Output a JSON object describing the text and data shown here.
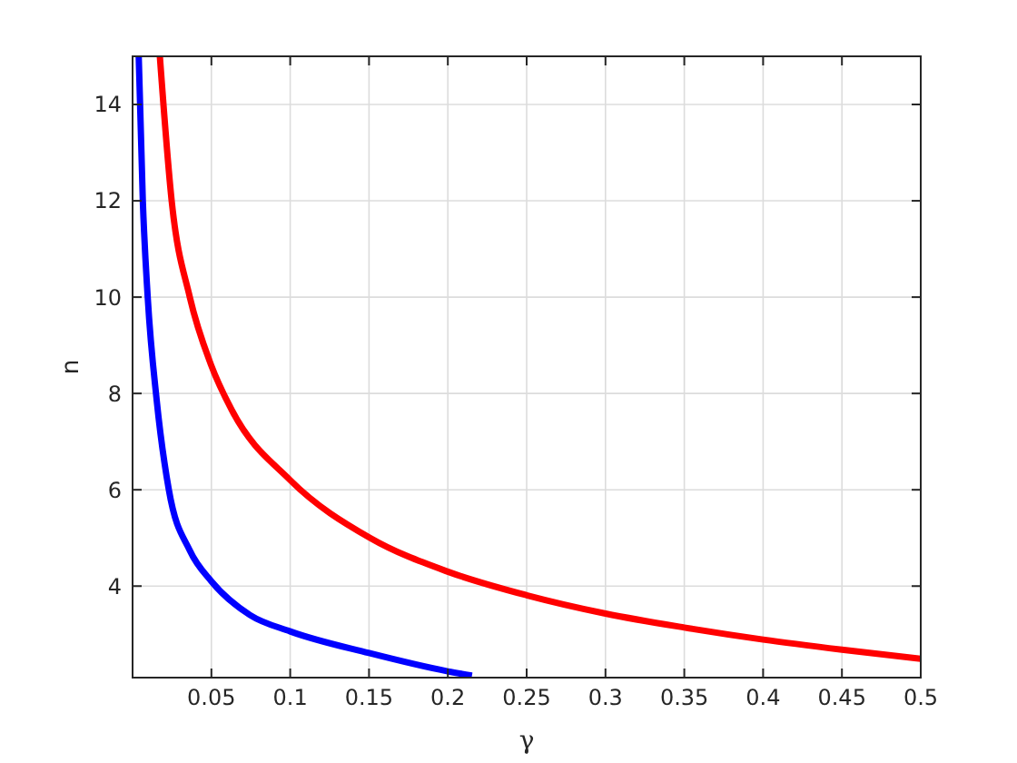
{
  "chart_data": {
    "type": "line",
    "xlabel": "γ",
    "ylabel": "n",
    "xlim": [
      0,
      0.5
    ],
    "ylim": [
      2.1,
      15
    ],
    "xticks": [
      0.05,
      0.1,
      0.15,
      0.2,
      0.25,
      0.3,
      0.35,
      0.4,
      0.45,
      0.5
    ],
    "yticks": [
      4,
      6,
      8,
      10,
      12,
      14
    ],
    "grid": true,
    "marker": "none",
    "line_style": "solid",
    "series": [
      {
        "color": "#ff0000",
        "x": [
          0.0173,
          0.0248,
          0.0363,
          0.0497,
          0.063,
          0.1,
          0.1507,
          0.2,
          0.25,
          0.3,
          0.35,
          0.4,
          0.45,
          0.5
        ],
        "values": [
          15,
          12,
          10,
          8.6,
          7.65,
          6.2,
          5,
          4.3,
          3.81,
          3.43,
          3.14,
          2.89,
          2.68,
          2.49
        ]
      },
      {
        "color": "#0000ff",
        "x": [
          0.0039,
          0.0065,
          0.0096,
          0.0153,
          0.023,
          0.0363,
          0.05,
          0.0745,
          0.1,
          0.15,
          0.2,
          0.2153
        ],
        "values": [
          15,
          12,
          10,
          7.86,
          6,
          4.74,
          4.1,
          3.4,
          3.06,
          2.61,
          2.23,
          2.14
        ]
      }
    ]
  }
}
